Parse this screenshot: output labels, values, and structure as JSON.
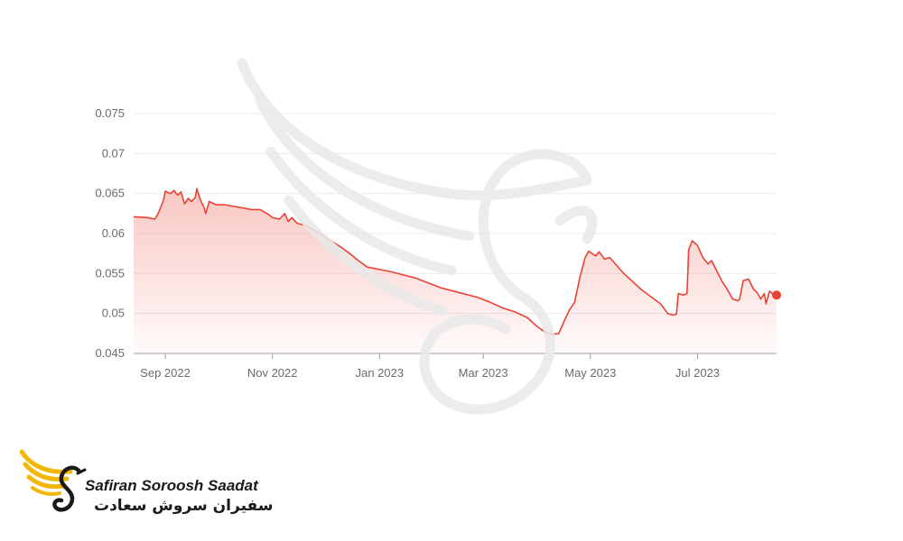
{
  "chart_data": {
    "type": "area",
    "title": "",
    "xlabel": "",
    "ylabel": "",
    "ylim": [
      0.045,
      0.075
    ],
    "yticks": [
      "0.045",
      "0.05",
      "0.055",
      "0.06",
      "0.065",
      "0.07",
      "0.075"
    ],
    "xticks": [
      {
        "date": "2022-09-01",
        "label": "Sep 2022"
      },
      {
        "date": "2022-11-01",
        "label": "Nov 2022"
      },
      {
        "date": "2023-01-01",
        "label": "Jan 2023"
      },
      {
        "date": "2023-03-01",
        "label": "Mar 2023"
      },
      {
        "date": "2023-05-01",
        "label": "May 2023"
      },
      {
        "date": "2023-07-01",
        "label": "Jul 2023"
      }
    ],
    "grid": true,
    "legend": "none",
    "series": [
      {
        "color": "#ea4335",
        "points": [
          [
            "2022-08-14",
            0.0621
          ],
          [
            "2022-08-22",
            0.062
          ],
          [
            "2022-08-26",
            0.0618
          ],
          [
            "2022-08-28",
            0.0625
          ],
          [
            "2022-08-31",
            0.0642
          ],
          [
            "2022-09-01",
            0.0653
          ],
          [
            "2022-09-04",
            0.065
          ],
          [
            "2022-09-06",
            0.0654
          ],
          [
            "2022-09-08",
            0.0648
          ],
          [
            "2022-09-10",
            0.0652
          ],
          [
            "2022-09-12",
            0.0637
          ],
          [
            "2022-09-14",
            0.0644
          ],
          [
            "2022-09-16",
            0.064
          ],
          [
            "2022-09-18",
            0.0645
          ],
          [
            "2022-09-19",
            0.0656
          ],
          [
            "2022-09-21",
            0.0642
          ],
          [
            "2022-09-23",
            0.0633
          ],
          [
            "2022-09-24",
            0.0625
          ],
          [
            "2022-09-26",
            0.064
          ],
          [
            "2022-09-30",
            0.0636
          ],
          [
            "2022-10-05",
            0.0636
          ],
          [
            "2022-10-10",
            0.0634
          ],
          [
            "2022-10-15",
            0.0632
          ],
          [
            "2022-10-20",
            0.063
          ],
          [
            "2022-10-25",
            0.063
          ],
          [
            "2022-10-29",
            0.0625
          ],
          [
            "2022-11-01",
            0.062
          ],
          [
            "2022-11-05",
            0.0618
          ],
          [
            "2022-11-08",
            0.0625
          ],
          [
            "2022-11-10",
            0.0615
          ],
          [
            "2022-11-12",
            0.062
          ],
          [
            "2022-11-15",
            0.0613
          ],
          [
            "2022-11-20",
            0.061
          ],
          [
            "2022-11-25",
            0.0604
          ],
          [
            "2022-12-01",
            0.0596
          ],
          [
            "2022-12-05",
            0.059
          ],
          [
            "2022-12-10",
            0.0583
          ],
          [
            "2022-12-15",
            0.0575
          ],
          [
            "2022-12-20",
            0.0566
          ],
          [
            "2022-12-25",
            0.0558
          ],
          [
            "2023-01-01",
            0.0555
          ],
          [
            "2023-01-08",
            0.0552
          ],
          [
            "2023-01-15",
            0.0548
          ],
          [
            "2023-01-22",
            0.0544
          ],
          [
            "2023-01-29",
            0.0538
          ],
          [
            "2023-02-05",
            0.0532
          ],
          [
            "2023-02-12",
            0.0528
          ],
          [
            "2023-02-19",
            0.0524
          ],
          [
            "2023-02-26",
            0.052
          ],
          [
            "2023-03-05",
            0.0514
          ],
          [
            "2023-03-12",
            0.0507
          ],
          [
            "2023-03-19",
            0.0502
          ],
          [
            "2023-03-26",
            0.0495
          ],
          [
            "2023-03-31",
            0.0485
          ],
          [
            "2023-04-05",
            0.0477
          ],
          [
            "2023-04-10",
            0.0474
          ],
          [
            "2023-04-13",
            0.0475
          ],
          [
            "2023-04-16",
            0.049
          ],
          [
            "2023-04-19",
            0.0504
          ],
          [
            "2023-04-22",
            0.0514
          ],
          [
            "2023-04-25",
            0.0545
          ],
          [
            "2023-04-28",
            0.057
          ],
          [
            "2023-04-30",
            0.0578
          ],
          [
            "2023-05-04",
            0.0572
          ],
          [
            "2023-05-06",
            0.0577
          ],
          [
            "2023-05-09",
            0.0568
          ],
          [
            "2023-05-12",
            0.057
          ],
          [
            "2023-05-16",
            0.056
          ],
          [
            "2023-05-20",
            0.055
          ],
          [
            "2023-05-25",
            0.054
          ],
          [
            "2023-05-30",
            0.053
          ],
          [
            "2023-06-05",
            0.052
          ],
          [
            "2023-06-10",
            0.0512
          ],
          [
            "2023-06-14",
            0.05
          ],
          [
            "2023-06-17",
            0.0498
          ],
          [
            "2023-06-19",
            0.0499
          ],
          [
            "2023-06-20",
            0.0525
          ],
          [
            "2023-06-23",
            0.0523
          ],
          [
            "2023-06-25",
            0.0525
          ],
          [
            "2023-06-26",
            0.058
          ],
          [
            "2023-06-28",
            0.0591
          ],
          [
            "2023-07-01",
            0.0585
          ],
          [
            "2023-07-04",
            0.057
          ],
          [
            "2023-07-07",
            0.0562
          ],
          [
            "2023-07-09",
            0.0566
          ],
          [
            "2023-07-12",
            0.0553
          ],
          [
            "2023-07-15",
            0.054
          ],
          [
            "2023-07-18",
            0.053
          ],
          [
            "2023-07-21",
            0.0518
          ],
          [
            "2023-07-24",
            0.0516
          ],
          [
            "2023-07-25",
            0.0518
          ],
          [
            "2023-07-27",
            0.0541
          ],
          [
            "2023-07-30",
            0.0543
          ],
          [
            "2023-08-02",
            0.053
          ],
          [
            "2023-08-04",
            0.0526
          ],
          [
            "2023-08-06",
            0.0518
          ],
          [
            "2023-08-08",
            0.0525
          ],
          [
            "2023-08-09",
            0.0512
          ],
          [
            "2023-08-11",
            0.0528
          ],
          [
            "2023-08-13",
            0.0524
          ],
          [
            "2023-08-15",
            0.0523
          ]
        ]
      }
    ]
  },
  "brand": {
    "name_en": "Safiran Soroosh Saadat",
    "name_fa": "سفیران سروش سعادت",
    "colors": {
      "gold": "#f2b705",
      "dark": "#1a1a1a",
      "line": "#ea4335"
    }
  }
}
